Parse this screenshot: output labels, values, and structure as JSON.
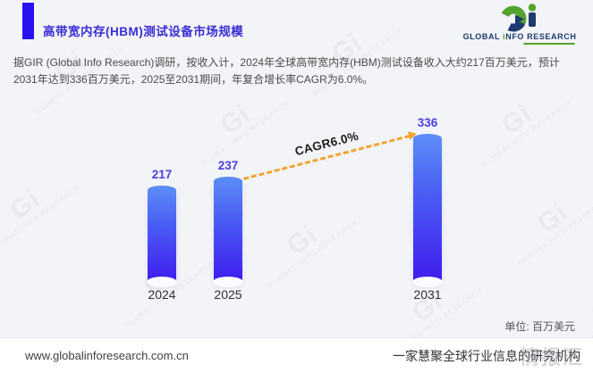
{
  "header": {
    "title": "高带宽内存(HBM)测试设备市场规模",
    "logo": {
      "name_prefix": "GLOBAL ",
      "name_i": "i",
      "name_suffix": "NFO RESEARCH",
      "navy": "#1e3a6e",
      "green": "#54a32d"
    }
  },
  "intro": {
    "text": "据GIR (Global Info Research)调研，按收入计，2024年全球高带宽内存(HBM)测试设备收入大约217百万美元，预计2031年达到336百万美元，2025至2031期间，年复合增长率CAGR为6.0%。"
  },
  "chart_data": {
    "type": "bar",
    "title": "高带宽内存(HBM)测试设备市场规模",
    "categories": [
      "2024",
      "2025",
      "2031"
    ],
    "values": [
      217,
      237,
      336
    ],
    "ylabel": "",
    "xlabel": "",
    "ylim": [
      0,
      400
    ],
    "unit_label": "单位: 百万美元",
    "annotation": "CAGR6.0%",
    "bar_color_top": "#5d8ef7",
    "bar_color_bottom": "#3f1cee",
    "value_label_color": "#4b3fe4",
    "annotation_arrow_color": "#f2a431",
    "grid": false,
    "legend": false
  },
  "watermark": {
    "mark": "Gi",
    "text": "GLOBAL INFO RESEARCH"
  },
  "footer": {
    "url": "www.globalinforesearch.com.cn",
    "slogan": "一家慧聚全球行业信息的研究机构",
    "overlay": "情报汇"
  }
}
